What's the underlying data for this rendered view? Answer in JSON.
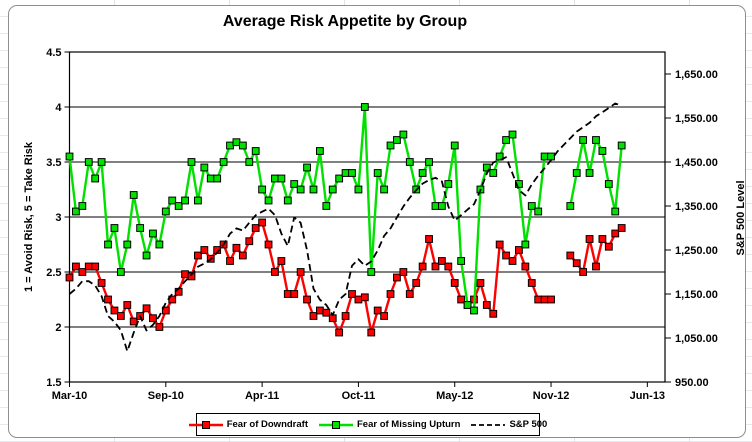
{
  "chart_data": {
    "type": "line",
    "title": "Average Risk Appetite by Group",
    "y_left": {
      "title": "1 = Avoid Risk, 5 = Take Risk",
      "min": 1.5,
      "max": 4.5,
      "tick_step": 0.5,
      "tick_values": [
        4.5,
        4,
        3.5,
        3,
        2.5,
        2,
        1.5
      ],
      "tick_labels": [
        "4.5",
        "4",
        "3.5",
        "3",
        "2.5",
        "2",
        "1.5"
      ]
    },
    "y_right": {
      "title": "S&P 500 Level",
      "min": 950,
      "max": 1700,
      "tick_step": 100,
      "tick_values": [
        1650,
        1550,
        1450,
        1350,
        1250,
        1150,
        1050,
        950
      ],
      "tick_labels": [
        "1,650.00",
        "1,550.00",
        "1,450.00",
        "1,350.00",
        "1,250.00",
        "1,150.00",
        "1,050.00",
        "950.00"
      ]
    },
    "x_axis": {
      "tick_labels": [
        "Mar-10",
        "Sep-10",
        "Apr-11",
        "Oct-11",
        "May-12",
        "Nov-12",
        "Jun-13"
      ],
      "tick_indices": [
        0,
        15,
        30,
        45,
        60,
        75,
        90
      ],
      "grid_extent": 92.75,
      "num_points": 87,
      "cadence": "biweekly"
    },
    "gridlines": {
      "horizontal_at": [
        2,
        2.5,
        3,
        3.5,
        4
      ],
      "vertical": false
    },
    "legend_position": "bottom",
    "series": [
      {
        "name": "Fear of Downdraft",
        "color": "#FF0000",
        "axis": "left",
        "marker": "square",
        "line_style": "solid",
        "values": [
          2.45,
          2.55,
          2.5,
          2.55,
          2.55,
          2.4,
          2.25,
          2.15,
          2.1,
          2.2,
          2.05,
          2.1,
          2.17,
          2.08,
          2.0,
          2.15,
          2.25,
          2.32,
          2.48,
          2.46,
          2.65,
          2.7,
          2.62,
          2.7,
          2.75,
          2.6,
          2.72,
          2.65,
          2.78,
          2.9,
          2.95,
          2.75,
          2.5,
          2.6,
          2.3,
          2.3,
          2.5,
          2.25,
          2.1,
          2.15,
          2.13,
          2.08,
          1.95,
          2.1,
          2.3,
          2.25,
          2.27,
          1.95,
          2.15,
          2.1,
          2.3,
          2.45,
          2.5,
          2.3,
          2.4,
          2.55,
          2.8,
          2.55,
          2.6,
          2.55,
          2.4,
          2.25,
          2.2,
          2.25,
          2.4,
          2.2,
          2.12,
          2.75,
          2.65,
          2.6,
          2.7,
          2.55,
          2.4,
          2.25,
          2.25,
          2.25,
          null,
          null,
          2.65,
          2.58,
          2.5,
          2.8,
          2.55,
          2.8,
          2.73,
          2.85,
          2.9
        ]
      },
      {
        "name": "Fear of Missing Upturn",
        "color": "#00E100",
        "axis": "left",
        "marker": "square",
        "line_style": "solid",
        "values": [
          3.55,
          3.05,
          3.1,
          3.5,
          3.35,
          3.5,
          2.75,
          2.9,
          2.5,
          2.75,
          3.2,
          2.9,
          2.65,
          2.85,
          2.75,
          3.05,
          3.15,
          3.1,
          3.15,
          3.5,
          3.15,
          3.45,
          3.35,
          3.35,
          3.5,
          3.65,
          3.68,
          3.65,
          3.5,
          3.6,
          3.25,
          3.15,
          3.35,
          3.35,
          3.15,
          3.3,
          3.25,
          3.45,
          3.25,
          3.6,
          3.1,
          3.25,
          3.35,
          3.4,
          3.4,
          3.25,
          4.0,
          2.5,
          3.4,
          3.25,
          3.65,
          3.7,
          3.75,
          3.5,
          3.25,
          3.4,
          3.5,
          3.1,
          3.1,
          3.3,
          3.65,
          2.6,
          2.2,
          2.15,
          3.25,
          3.45,
          3.4,
          3.55,
          3.7,
          3.75,
          3.3,
          2.75,
          3.1,
          3.05,
          3.55,
          3.55,
          null,
          null,
          3.1,
          3.4,
          3.7,
          3.4,
          3.7,
          3.6,
          3.3,
          3.05,
          3.65
        ]
      },
      {
        "name": "S&P 500",
        "color": "#000000",
        "axis": "right",
        "marker": "none",
        "line_style": "dashed",
        "values": [
          1150,
          1162,
          1179,
          1179,
          1169,
          1145,
          1100,
          1087,
          1067,
          1020,
          1062,
          1100,
          1067,
          1080,
          1100,
          1130,
          1150,
          1162,
          1179,
          1194,
          1212,
          1219,
          1229,
          1244,
          1262,
          1287,
          1299,
          1294,
          1312,
          1329,
          1337,
          1344,
          1329,
          1287,
          1259,
          1324,
          1312,
          1249,
          1162,
          1137,
          1125,
          1102,
          1137,
          1150,
          1214,
          1229,
          1214,
          1224,
          1249,
          1282,
          1299,
          1324,
          1349,
          1369,
          1386,
          1401,
          1409,
          1414,
          1406,
          1349,
          1317,
          1329,
          1342,
          1354,
          1386,
          1424,
          1449,
          1454,
          1461,
          1424,
          1386,
          1374,
          1399,
          1419,
          1436,
          1454,
          1474,
          1489,
          1504,
          1519,
          1529,
          1539,
          1554,
          1563,
          1573,
          1583,
          1578
        ]
      }
    ]
  }
}
